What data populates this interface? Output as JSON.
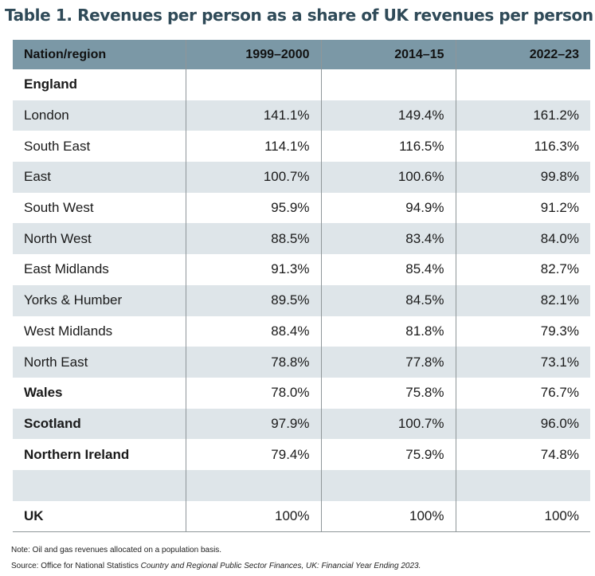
{
  "title": "Table 1. Revenues per person as a share of UK revenues per person",
  "columns": [
    "Nation/region",
    "1999–2000",
    "2014–15",
    "2022–23"
  ],
  "rows": [
    {
      "label": "England",
      "bold": true,
      "values": [
        "",
        "",
        ""
      ]
    },
    {
      "label": "London",
      "bold": false,
      "values": [
        "141.1%",
        "149.4%",
        "161.2%"
      ]
    },
    {
      "label": "South East",
      "bold": false,
      "values": [
        "114.1%",
        "116.5%",
        "116.3%"
      ]
    },
    {
      "label": "East",
      "bold": false,
      "values": [
        "100.7%",
        "100.6%",
        "99.8%"
      ]
    },
    {
      "label": "South West",
      "bold": false,
      "values": [
        "95.9%",
        "94.9%",
        "91.2%"
      ]
    },
    {
      "label": "North West",
      "bold": false,
      "values": [
        "88.5%",
        "83.4%",
        "84.0%"
      ]
    },
    {
      "label": "East Midlands",
      "bold": false,
      "values": [
        "91.3%",
        "85.4%",
        "82.7%"
      ]
    },
    {
      "label": "Yorks & Humber",
      "bold": false,
      "values": [
        "89.5%",
        "84.5%",
        "82.1%"
      ]
    },
    {
      "label": "West Midlands",
      "bold": false,
      "values": [
        "88.4%",
        "81.8%",
        "79.3%"
      ]
    },
    {
      "label": "North East",
      "bold": false,
      "values": [
        "78.8%",
        "77.8%",
        "73.1%"
      ]
    },
    {
      "label": "Wales",
      "bold": true,
      "values": [
        "78.0%",
        "75.8%",
        "76.7%"
      ]
    },
    {
      "label": "Scotland",
      "bold": true,
      "values": [
        "97.9%",
        "100.7%",
        "96.0%"
      ]
    },
    {
      "label": "Northern Ireland",
      "bold": true,
      "values": [
        "79.4%",
        "75.9%",
        "74.8%"
      ]
    },
    {
      "label": "",
      "bold": false,
      "values": [
        "",
        "",
        ""
      ]
    },
    {
      "label": "UK",
      "bold": true,
      "values": [
        "100%",
        "100%",
        "100%"
      ]
    }
  ],
  "note": "Note: Oil and gas revenues allocated on a population basis.",
  "source": {
    "prefix": "Source: Office for National Statistics ",
    "title": "Country and Regional Public Sector Finances, UK: Financial Year Ending 2023."
  }
}
